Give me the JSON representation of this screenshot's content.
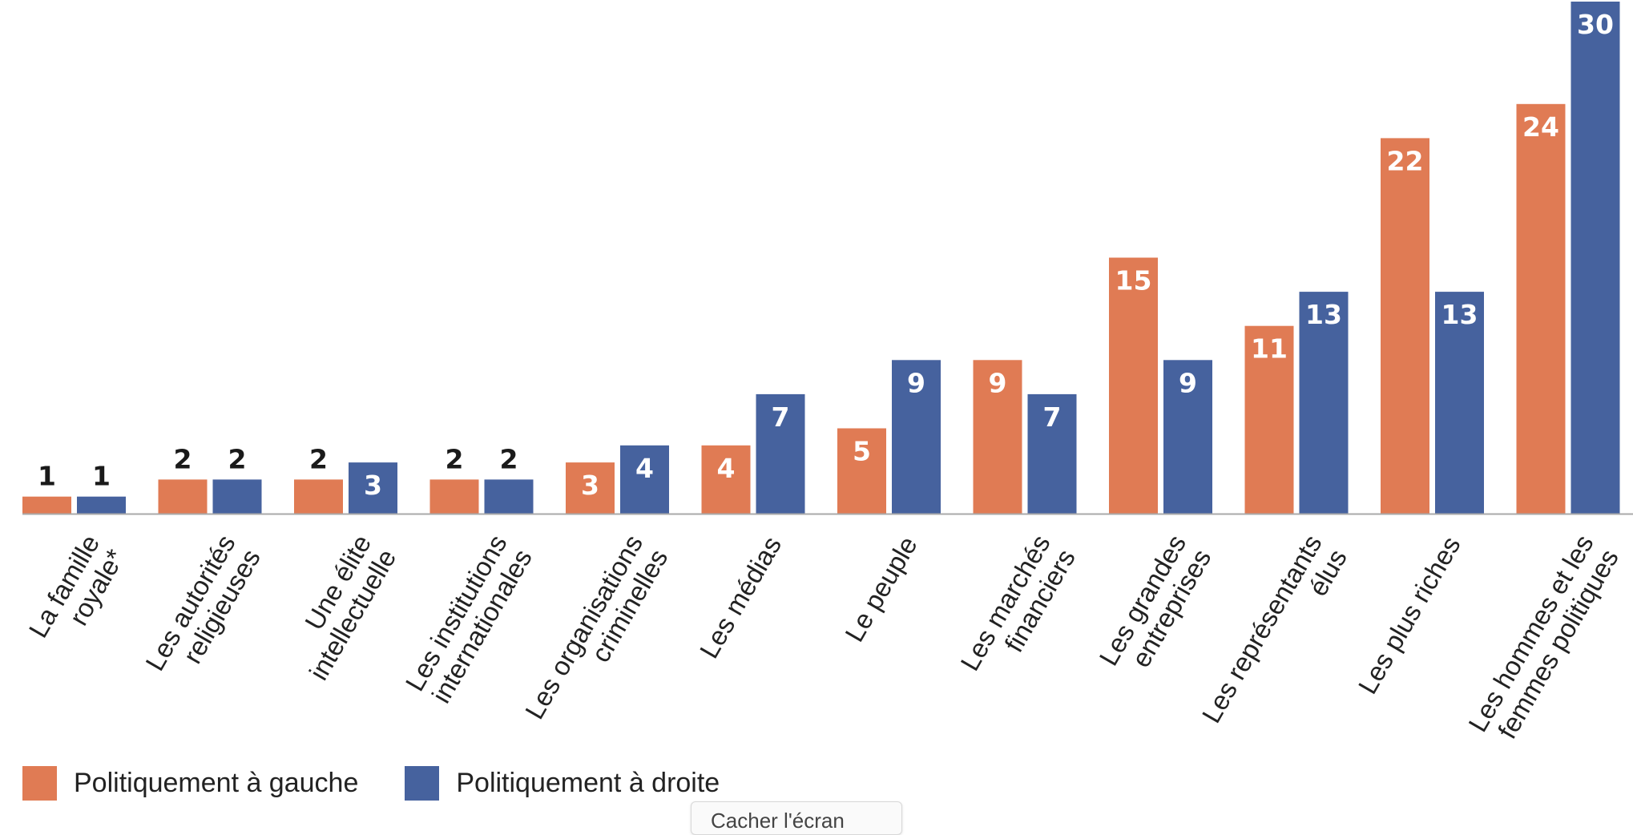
{
  "chart_data": {
    "type": "bar",
    "title": "",
    "xlabel": "",
    "ylabel": "",
    "ylim": [
      0,
      30
    ],
    "grid": false,
    "categories": [
      [
        "La famille",
        "royale*"
      ],
      [
        "Les autorités",
        "religieuses"
      ],
      [
        "Une élite",
        "intellectuelle"
      ],
      [
        "Les institutions",
        "internationales"
      ],
      [
        "Les organisations",
        "criminelles"
      ],
      [
        "Les médias"
      ],
      [
        "Le peuple"
      ],
      [
        "Les marchés",
        "financiers"
      ],
      [
        "Les grandes",
        "entreprises"
      ],
      [
        "Les représentants",
        "élus"
      ],
      [
        "Les plus riches"
      ],
      [
        "Les hommes et les",
        "femmes politiques"
      ]
    ],
    "series": [
      {
        "name": "Politiquement à gauche",
        "color": "#E07B54",
        "values": [
          1,
          2,
          2,
          2,
          3,
          4,
          5,
          9,
          15,
          11,
          22,
          24
        ]
      },
      {
        "name": "Politiquement à droite",
        "color": "#46629E",
        "values": [
          1,
          2,
          3,
          2,
          4,
          7,
          9,
          7,
          9,
          13,
          13,
          30
        ]
      }
    ],
    "legend_position": "bottom-left"
  },
  "tooltip": {
    "text": "Cacher l'écran"
  },
  "colors": {
    "axis": "#aaaaaa",
    "label_dark": "#1a1a1a",
    "label_light": "#ffffff"
  }
}
